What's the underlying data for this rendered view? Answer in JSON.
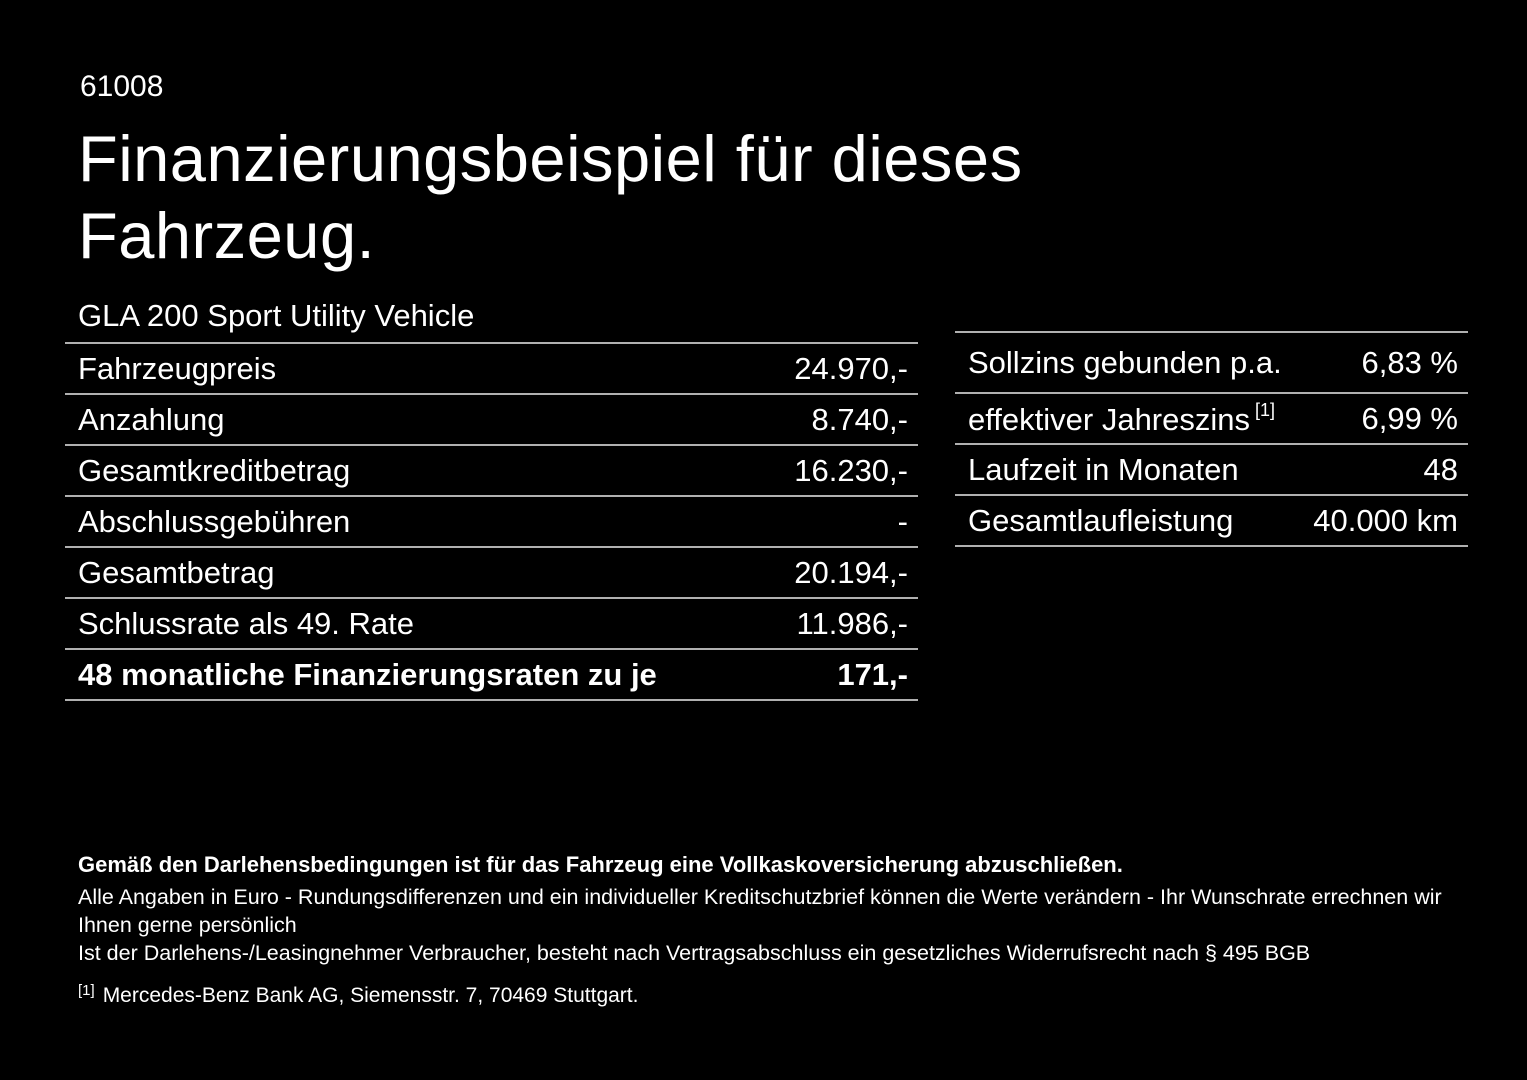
{
  "page": {
    "code": "61008",
    "title_lines": [
      "Finanzierungsbeispiel für dieses",
      "Fahrzeug."
    ],
    "vehicle": "GLA 200 Sport Utility Vehicle"
  },
  "left_table": {
    "rows": [
      {
        "label": "Fahrzeugpreis",
        "value": "24.970,-"
      },
      {
        "label": "Anzahlung",
        "value": "8.740,-"
      },
      {
        "label": "Gesamtkreditbetrag",
        "value": "16.230,-"
      },
      {
        "label": "Abschlussgebühren",
        "value": "-"
      },
      {
        "label": "Gesamtbetrag",
        "value": "20.194,-"
      },
      {
        "label": "Schlussrate als 49. Rate",
        "value": "11.986,-"
      },
      {
        "label": "48 monatliche Finanzierungsraten zu je",
        "value": "171,-"
      }
    ]
  },
  "right_table": {
    "rows": [
      {
        "label": "Sollzins gebunden p.a.",
        "value": "6,83 %"
      },
      {
        "label": "effektiver Jahreszins",
        "sup": "[1]",
        "value": "6,99 %"
      },
      {
        "label": "Laufzeit in Monaten",
        "value": "48"
      },
      {
        "label": "Gesamtlaufleistung",
        "value": "40.000 km"
      }
    ]
  },
  "footer": {
    "line1": "Gemäß den Darlehensbedingungen ist für das Fahrzeug eine Vollkaskoversicherung abzuschließen.",
    "line2": "Alle Angaben in Euro - Rundungsdifferenzen und ein individueller Kreditschutzbrief können die Werte verändern - Ihr Wunschrate errechnen wir Ihnen gerne persönlich",
    "line3": "Ist der Darlehens-/Leasingnehmer Verbraucher, besteht nach Vertragsabschluss ein gesetzliches Widerrufsrecht nach § 495 BGB",
    "footnote_marker": "[1]",
    "footnote_text": "Mercedes-Benz Bank AG, Siemensstr. 7, 70469 Stuttgart."
  },
  "colors": {
    "background": "#000000",
    "text": "#ffffff",
    "divider": "#b0b0b0"
  }
}
